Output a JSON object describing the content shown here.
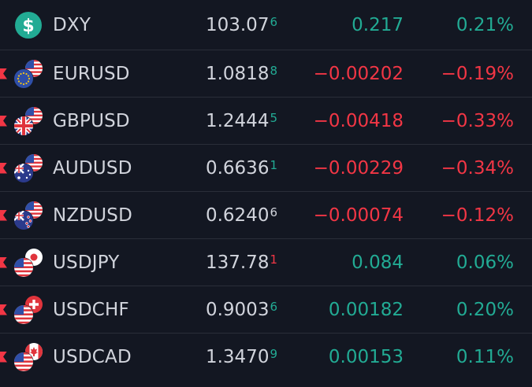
{
  "colors": {
    "background": "#131722",
    "text": "#d1d4dc",
    "positive": "#22ab94",
    "negative": "#f23645",
    "divider": "#2a2e39"
  },
  "watchlist": {
    "rows": [
      {
        "symbol": "DXY",
        "price_main": "103.07",
        "price_pip": "6",
        "pip_dir": "up",
        "change": "0.217",
        "change_pct": "0.21%",
        "dir": "pos",
        "icon": "dollar-icon"
      },
      {
        "symbol": "EURUSD",
        "price_main": "1.0818",
        "price_pip": "8",
        "pip_dir": "up",
        "change": "−0.00202",
        "change_pct": "−0.19%",
        "dir": "neg",
        "icon": "eur-usd-flag-icon"
      },
      {
        "symbol": "GBPUSD",
        "price_main": "1.2444",
        "price_pip": "5",
        "pip_dir": "up",
        "change": "−0.00418",
        "change_pct": "−0.33%",
        "dir": "neg",
        "icon": "gbp-usd-flag-icon"
      },
      {
        "symbol": "AUDUSD",
        "price_main": "0.6636",
        "price_pip": "1",
        "pip_dir": "up",
        "change": "−0.00229",
        "change_pct": "−0.34%",
        "dir": "neg",
        "icon": "aud-usd-flag-icon"
      },
      {
        "symbol": "NZDUSD",
        "price_main": "0.6240",
        "price_pip": "6",
        "pip_dir": "flat",
        "change": "−0.00074",
        "change_pct": "−0.12%",
        "dir": "neg",
        "icon": "nzd-usd-flag-icon"
      },
      {
        "symbol": "USDJPY",
        "price_main": "137.78",
        "price_pip": "1",
        "pip_dir": "down",
        "change": "0.084",
        "change_pct": "0.06%",
        "dir": "pos",
        "icon": "usd-jpy-flag-icon"
      },
      {
        "symbol": "USDCHF",
        "price_main": "0.9003",
        "price_pip": "6",
        "pip_dir": "up",
        "change": "0.00182",
        "change_pct": "0.20%",
        "dir": "pos",
        "icon": "usd-chf-flag-icon"
      },
      {
        "symbol": "USDCAD",
        "price_main": "1.3470",
        "price_pip": "9",
        "pip_dir": "up",
        "change": "0.00153",
        "change_pct": "0.11%",
        "dir": "pos",
        "icon": "usd-cad-flag-icon"
      }
    ]
  }
}
